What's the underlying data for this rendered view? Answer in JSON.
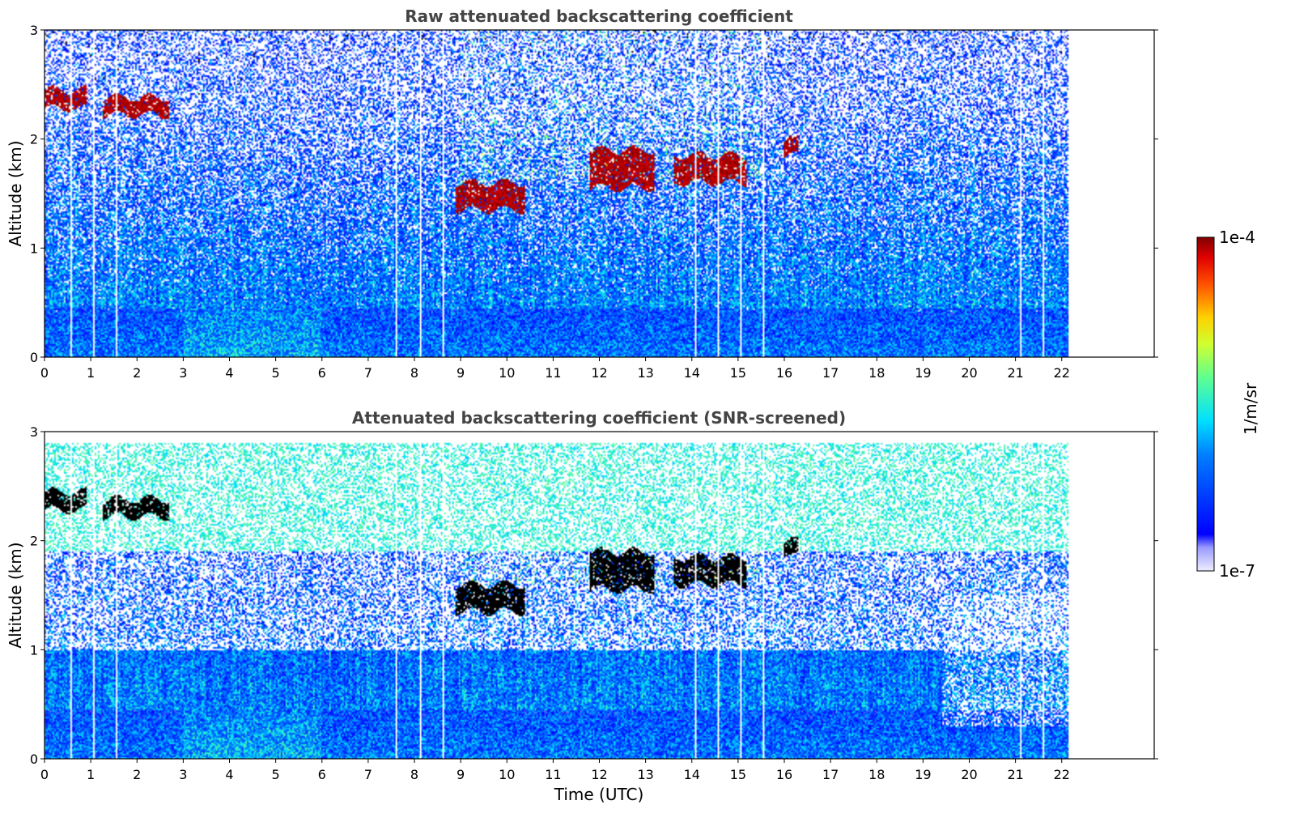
{
  "chart_data": [
    {
      "type": "heatmap",
      "title": "Raw attenuated backscattering coefficient",
      "xlabel": "",
      "ylabel": "Altitude (km)",
      "xlim": [
        0,
        24
      ],
      "ylim": [
        0,
        3
      ],
      "data_end_time": 22.15,
      "x_ticks": [
        "0",
        "1",
        "2",
        "3",
        "4",
        "5",
        "6",
        "7",
        "8",
        "9",
        "10",
        "11",
        "12",
        "13",
        "14",
        "15",
        "16",
        "17",
        "18",
        "19",
        "20",
        "21",
        "22"
      ],
      "y_ticks": [
        "0",
        "1",
        "2",
        "3"
      ],
      "screened": false,
      "features": [
        {
          "kind": "cloud_layer",
          "t0": 0.0,
          "t1": 0.9,
          "z0": 2.28,
          "z1": 2.45
        },
        {
          "kind": "cloud_layer",
          "t0": 1.25,
          "t1": 2.7,
          "z0": 2.22,
          "z1": 2.38
        },
        {
          "kind": "cloud_layer",
          "t0": 8.9,
          "t1": 10.4,
          "z0": 1.35,
          "z1": 1.6
        },
        {
          "kind": "cloud_layer",
          "t0": 11.8,
          "t1": 13.2,
          "z0": 1.55,
          "z1": 1.9
        },
        {
          "kind": "cloud_layer",
          "t0": 13.6,
          "t1": 15.2,
          "z0": 1.6,
          "z1": 1.85
        },
        {
          "kind": "cloud_layer",
          "t0": 16.0,
          "t1": 16.3,
          "z0": 1.85,
          "z1": 2.0
        }
      ]
    },
    {
      "type": "heatmap",
      "title": "Attenuated backscattering coefficient (SNR-screened)",
      "xlabel": "Time (UTC)",
      "ylabel": "Altitude (km)",
      "xlim": [
        0,
        24
      ],
      "ylim": [
        0,
        3
      ],
      "data_end_time": 22.15,
      "x_ticks": [
        "0",
        "1",
        "2",
        "3",
        "4",
        "5",
        "6",
        "7",
        "8",
        "9",
        "10",
        "11",
        "12",
        "13",
        "14",
        "15",
        "16",
        "17",
        "18",
        "19",
        "20",
        "21",
        "22"
      ],
      "y_ticks": [
        "0",
        "1",
        "2",
        "3"
      ],
      "screened": true,
      "features": [
        {
          "kind": "cloud_layer",
          "t0": 0.0,
          "t1": 0.9,
          "z0": 2.28,
          "z1": 2.45
        },
        {
          "kind": "cloud_layer",
          "t0": 1.25,
          "t1": 2.7,
          "z0": 2.22,
          "z1": 2.38
        },
        {
          "kind": "cloud_layer",
          "t0": 8.9,
          "t1": 10.4,
          "z0": 1.35,
          "z1": 1.6
        },
        {
          "kind": "cloud_layer",
          "t0": 11.8,
          "t1": 13.2,
          "z0": 1.55,
          "z1": 1.9
        },
        {
          "kind": "cloud_layer",
          "t0": 13.6,
          "t1": 15.2,
          "z0": 1.6,
          "z1": 1.85
        },
        {
          "kind": "cloud_layer",
          "t0": 16.0,
          "t1": 16.3,
          "z0": 1.85,
          "z1": 2.0
        }
      ]
    }
  ],
  "colorbar": {
    "max_label": "1e-4",
    "min_label": "1e-7",
    "unit_label": "1/m/sr",
    "colormap": "jet",
    "scale": "log",
    "vmin": 1e-07,
    "vmax": 0.0001
  }
}
